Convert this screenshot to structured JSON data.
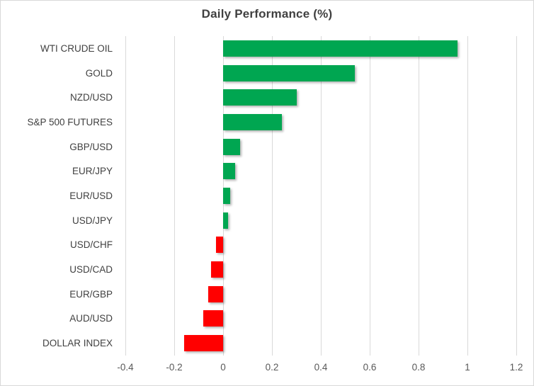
{
  "chart_data": {
    "type": "bar",
    "orientation": "horizontal",
    "title": "Daily Performance (%)",
    "categories": [
      "WTI CRUDE OIL",
      "GOLD",
      "NZD/USD",
      "S&P 500 FUTURES",
      "GBP/USD",
      "EUR/JPY",
      "EUR/USD",
      "USD/JPY",
      "USD/CHF",
      "USD/CAD",
      "EUR/GBP",
      "AUD/USD",
      "DOLLAR INDEX"
    ],
    "values": [
      0.96,
      0.54,
      0.3,
      0.24,
      0.07,
      0.05,
      0.03,
      0.02,
      -0.03,
      -0.05,
      -0.06,
      -0.08,
      -0.16
    ],
    "xlabel": "",
    "ylabel": "",
    "xlim": [
      -0.4,
      1.2
    ],
    "xticks": [
      {
        "value": -0.4,
        "label": "-0.4"
      },
      {
        "value": -0.2,
        "label": "-0.2"
      },
      {
        "value": 0,
        "label": "0"
      },
      {
        "value": 0.2,
        "label": "0.2"
      },
      {
        "value": 0.4,
        "label": "0.4"
      },
      {
        "value": 0.6,
        "label": "0.6"
      },
      {
        "value": 0.8,
        "label": "0.8"
      },
      {
        "value": 1,
        "label": "1"
      },
      {
        "value": 1.2,
        "label": "1.2"
      }
    ],
    "grid": "vertical",
    "legend_position": "none",
    "positive_color": "#00A651",
    "negative_color": "#FF0000"
  },
  "style": {
    "gridline_color": "#d9d9d9",
    "title_color": "#404040",
    "category_label_color": "#404040",
    "tick_label_color": "#595959",
    "border_color": "#d9d9d9",
    "background_color": "#ffffff"
  }
}
